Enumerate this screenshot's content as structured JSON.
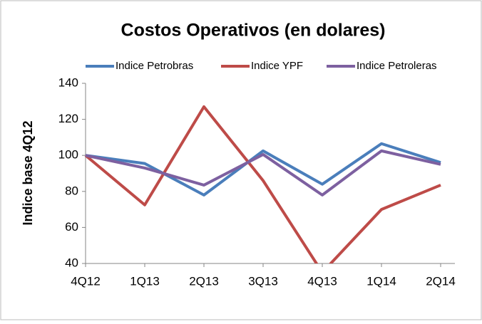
{
  "chart_data": {
    "type": "line",
    "title": "Costos Operativos (en dolares)",
    "y_label": "Indice base 4Q12",
    "categories": [
      "4Q12",
      "1Q13",
      "2Q13",
      "3Q13",
      "4Q13",
      "1Q14",
      "2Q14"
    ],
    "series": [
      {
        "name": "Indice Petrobras",
        "color": "#4a7ebb",
        "values": [
          100,
          95.5,
          78,
          102.5,
          84,
          106.5,
          96
        ]
      },
      {
        "name": "Indice YPF",
        "color": "#be4b48",
        "values": [
          100,
          72.5,
          127,
          86,
          35,
          70,
          83.5
        ]
      },
      {
        "name": "Indice Petroleras",
        "color": "#7d60a0",
        "values": [
          100,
          93,
          83.5,
          100.5,
          78,
          102.5,
          95
        ]
      }
    ],
    "ylim": [
      40,
      140
    ],
    "yticks": [
      40,
      60,
      80,
      100,
      120,
      140
    ],
    "grid": false,
    "legend": "top"
  }
}
